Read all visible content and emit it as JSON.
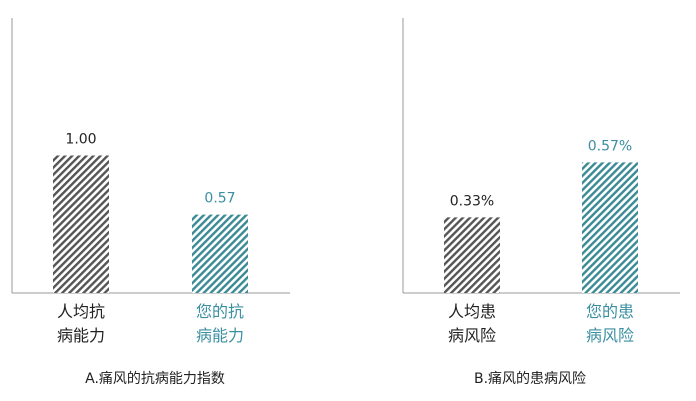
{
  "chart_data": [
    {
      "type": "bar",
      "title": "A.痛风的抗病能力指数",
      "categories": [
        "人均抗\n病能力",
        "您的抗\n病能力"
      ],
      "values": [
        1.0,
        0.57
      ],
      "value_labels": [
        "1.00",
        "0.57"
      ],
      "colors": [
        "#555555",
        "#3a8a95"
      ],
      "label_colors": [
        "#222222",
        "#3a8fa0"
      ],
      "ylim": [
        0,
        2
      ]
    },
    {
      "type": "bar",
      "title": "B.痛风的患病风险",
      "categories": [
        "人均患\n病风险",
        "您的患\n病风险"
      ],
      "values": [
        0.33,
        0.57
      ],
      "value_labels": [
        "0.33%",
        "0.57%"
      ],
      "colors": [
        "#555555",
        "#3a8a95"
      ],
      "label_colors": [
        "#222222",
        "#3a8fa0"
      ],
      "ylim": [
        0,
        1.2
      ]
    }
  ]
}
